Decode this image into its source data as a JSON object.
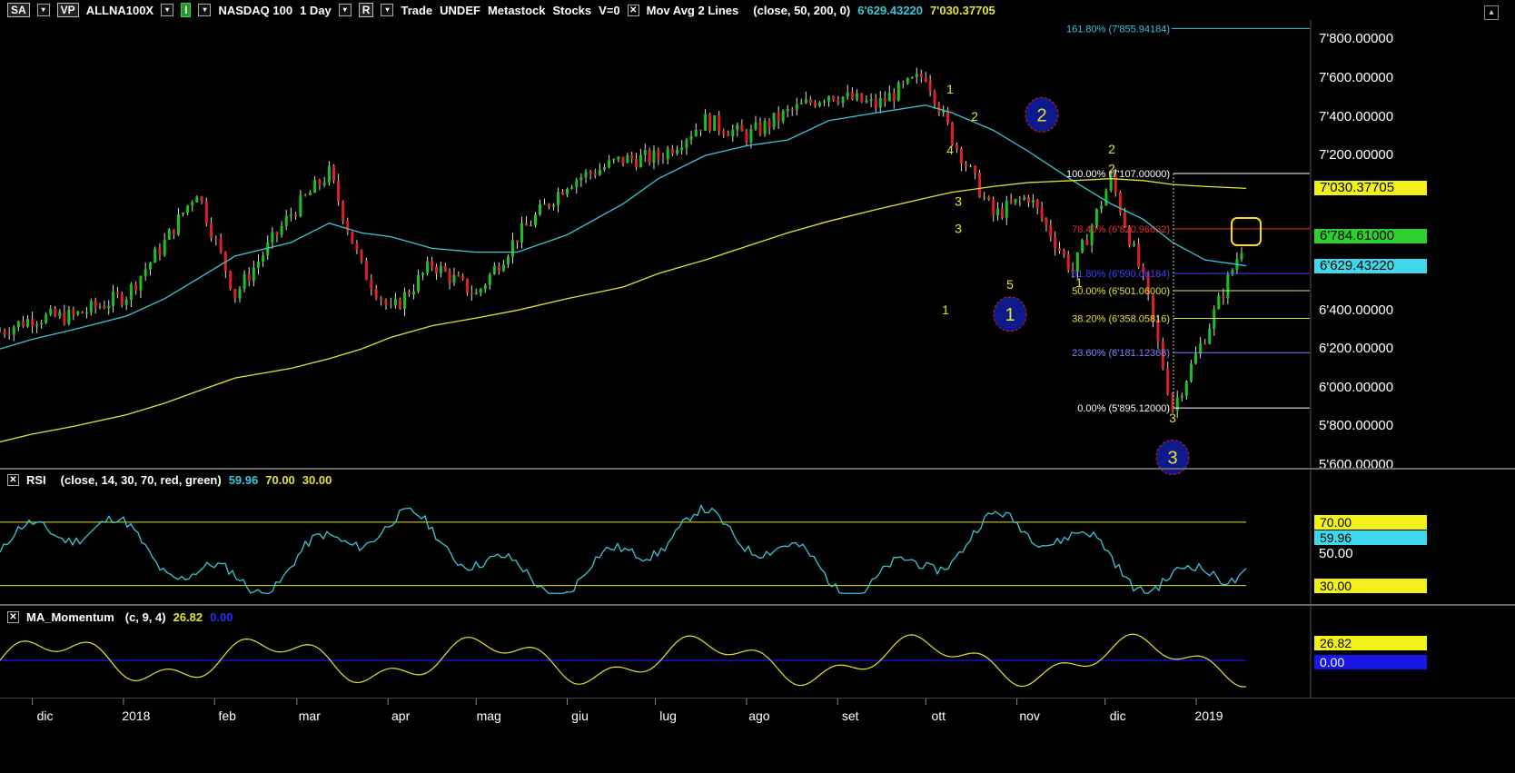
{
  "header": {
    "sa": "SA",
    "vp": "VP",
    "symbol": "ALLNA100X",
    "i_btn": "I",
    "name": "NASDAQ 100",
    "interval": "1 Day",
    "r_btn": "R",
    "trade": "Trade",
    "undef": "UNDEF",
    "source": "Metastock",
    "asset": "Stocks",
    "v": "V=0",
    "study": "Mov Avg 2 Lines",
    "params": "(close, 50, 200, 0)",
    "val1": "6'629.43220",
    "val2": "7'030.37705"
  },
  "rsi_header": {
    "name": "RSI",
    "params": "(close, 14, 30, 70, red, green)",
    "v1": "59.96",
    "v2": "70.00",
    "v3": "30.00"
  },
  "mom_header": {
    "name": "MA_Momentum",
    "params": "(c, 9, 4)",
    "v1": "26.82",
    "v2": "0.00"
  },
  "colors": {
    "sma50": "#39c6d8",
    "sma200": "#e3e32e",
    "up": "#19c21f",
    "down": "#e02020",
    "fib_text_100": "#ffffff",
    "fib_text_786": "#e03030",
    "fib_text_618": "#4040ff",
    "fib_text_50": "#e3e32e",
    "fib_text_382": "#e3e32e",
    "fib_text_236": "#8080ff",
    "fib_text_1618": "#39c6d8",
    "wave_circle": "#0e1a8c",
    "wave_text": "#e3e32e",
    "highlight_box": "#ffdd00"
  },
  "price_axis": [
    "7'800.00000",
    "7'600.00000",
    "7'400.00000",
    "7'200.00000",
    "6'400.00000",
    "6'200.00000",
    "6'000.00000",
    "5'800.00000",
    "5'600.00000"
  ],
  "price_tags": [
    {
      "label": "7'030.37705",
      "bg": "#f2f21a"
    },
    {
      "label": "6'784.61000",
      "bg": "#2ed02e"
    },
    {
      "label": "6'629.43220",
      "bg": "#3fd8ea"
    }
  ],
  "rsi_axis": [
    "50.00"
  ],
  "rsi_tags": [
    {
      "label": "70.00",
      "bg": "#f2f21a"
    },
    {
      "label": "59.96",
      "bg": "#3fd8ea"
    },
    {
      "label": "30.00",
      "bg": "#f2f21a"
    }
  ],
  "mom_tags": [
    {
      "label": "26.82",
      "bg": "#f2f21a"
    },
    {
      "label": "0.00",
      "bg": "#1616e8"
    }
  ],
  "x_axis": [
    "dic",
    "2018",
    "feb",
    "mar",
    "apr",
    "mag",
    "giu",
    "lug",
    "ago",
    "set",
    "ott",
    "nov",
    "dic",
    "2019"
  ],
  "fib_levels": [
    {
      "label": "161.80% (7'855.94184)",
      "value": 7855.94184
    },
    {
      "label": "100.00% (7'107.00000)",
      "value": 7107.0
    },
    {
      "label": "78.40% (6'820.96632)",
      "value": 6820.96632
    },
    {
      "label": "61.80% (6'590.06184)",
      "value": 6590.06184
    },
    {
      "label": "50.00% (6'501.06000)",
      "value": 6501.06
    },
    {
      "label": "38.20% (6'358.05816)",
      "value": 6358.05816
    },
    {
      "label": "23.60% (6'181.12368)",
      "value": 6181.12368
    },
    {
      "label": "0.00% (5'895.12000)",
      "value": 5895.12
    }
  ],
  "wave_labels": [
    "1",
    "2",
    "3",
    "4",
    "5",
    "1",
    "2",
    "3",
    "1",
    "2",
    "3"
  ],
  "circle_labels": [
    "1",
    "2",
    "3"
  ],
  "chart_data": {
    "type": "line",
    "title": "ALLNA100X NASDAQ 100 1 Day",
    "ylim": [
      5600,
      7900
    ],
    "x": [
      "2017-11-20",
      "2017-12-01",
      "2017-12-15",
      "2018-01-02",
      "2018-01-15",
      "2018-01-26",
      "2018-02-08",
      "2018-02-27",
      "2018-03-12",
      "2018-03-23",
      "2018-04-02",
      "2018-04-16",
      "2018-05-01",
      "2018-05-15",
      "2018-06-01",
      "2018-06-20",
      "2018-07-02",
      "2018-07-18",
      "2018-08-01",
      "2018-08-15",
      "2018-08-29",
      "2018-09-14",
      "2018-10-01",
      "2018-10-10",
      "2018-10-24",
      "2018-11-05",
      "2018-11-20",
      "2018-12-03",
      "2018-12-14",
      "2018-12-24",
      "2019-01-04",
      "2019-01-18"
    ],
    "series": [
      {
        "name": "close",
        "values": [
          6290,
          6360,
          6370,
          6480,
          6750,
          7020,
          6480,
          6900,
          7110,
          6620,
          6390,
          6640,
          6480,
          6780,
          7060,
          7180,
          7190,
          7380,
          7300,
          7420,
          7520,
          7460,
          7620,
          7290,
          6890,
          6990,
          6600,
          7080,
          6550,
          5895,
          6270,
          6785
        ]
      },
      {
        "name": "SMA50",
        "values": [
          6200,
          6250,
          6300,
          6370,
          6460,
          6560,
          6680,
          6750,
          6850,
          6800,
          6780,
          6720,
          6700,
          6700,
          6790,
          6950,
          7080,
          7200,
          7250,
          7280,
          7380,
          7420,
          7460,
          7420,
          7330,
          7220,
          7070,
          6950,
          6870,
          6750,
          6660,
          6630
        ]
      },
      {
        "name": "SMA200",
        "values": [
          5720,
          5760,
          5800,
          5860,
          5920,
          5980,
          6050,
          6100,
          6150,
          6200,
          6260,
          6320,
          6360,
          6400,
          6460,
          6520,
          6590,
          6660,
          6730,
          6800,
          6860,
          6920,
          6980,
          7010,
          7040,
          7060,
          7070,
          7080,
          7070,
          7050,
          7040,
          7030
        ]
      }
    ]
  }
}
